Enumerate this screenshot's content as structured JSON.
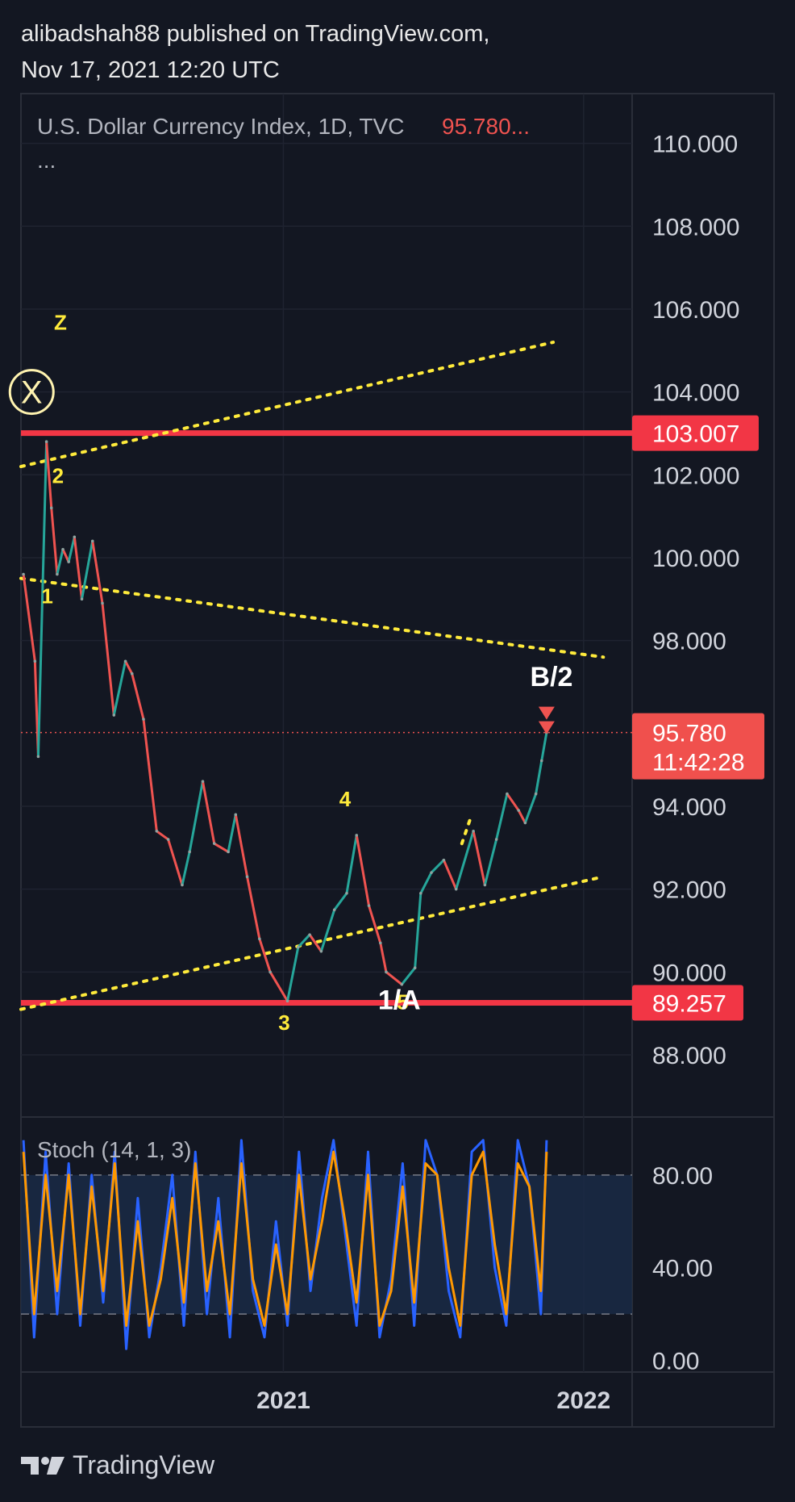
{
  "header": {
    "line1": "alibadshah88 published on TradingView.com,",
    "line2": "Nov 17, 2021 12:20 UTC"
  },
  "footer": {
    "brand": "TradingView"
  },
  "chart_data": [
    {
      "type": "line",
      "title": "U.S. Dollar Currency Index, 1D, TVC",
      "price_label": "95.780...",
      "legend_more": "...",
      "yticks": [
        "110.000",
        "108.000",
        "106.000",
        "104.000",
        "102.000",
        "100.000",
        "98.000",
        "94.000",
        "92.000",
        "90.000",
        "88.000"
      ],
      "ytick_values": [
        110,
        108,
        106,
        104,
        102,
        100,
        98,
        94,
        92,
        90,
        88
      ],
      "ylim": [
        86.5,
        111.2
      ],
      "xticks": [
        "2021",
        "2022"
      ],
      "xtick_values": [
        "2021-01-01",
        "2022-01-01"
      ],
      "x_range": [
        "2020-02-17",
        "2022-03-01"
      ],
      "grid": true,
      "colors": {
        "up": "#26a69a",
        "down": "#ef5350",
        "trendline": "#ffeb3b",
        "level": "#f23645",
        "label_text": "#ffffff"
      },
      "series": [
        {
          "x": [
            "2020-02-20",
            "2020-03-05",
            "2020-03-09",
            "2020-03-19",
            "2020-03-25",
            "2020-04-01",
            "2020-04-08",
            "2020-04-15",
            "2020-04-22",
            "2020-05-01",
            "2020-05-14",
            "2020-05-26",
            "2020-06-09",
            "2020-06-23",
            "2020-07-01",
            "2020-07-15",
            "2020-07-31",
            "2020-08-14",
            "2020-08-31",
            "2020-09-09",
            "2020-09-25",
            "2020-10-09",
            "2020-10-26",
            "2020-11-04",
            "2020-11-18",
            "2020-12-03",
            "2020-12-16",
            "2021-01-06",
            "2021-01-19",
            "2021-02-02",
            "2021-02-16",
            "2021-03-04",
            "2021-03-19",
            "2021-03-31",
            "2021-04-15",
            "2021-04-29",
            "2021-05-06",
            "2021-05-25",
            "2021-06-10",
            "2021-06-17",
            "2021-06-30",
            "2021-07-15",
            "2021-07-30",
            "2021-08-20",
            "2021-09-03",
            "2021-09-17",
            "2021-09-30",
            "2021-10-14",
            "2021-10-22",
            "2021-11-04",
            "2021-11-11",
            "2021-11-17"
          ],
          "y": [
            99.6,
            97.5,
            95.2,
            102.8,
            101.2,
            99.6,
            100.2,
            99.9,
            100.5,
            99.0,
            100.4,
            98.9,
            96.2,
            97.5,
            97.2,
            96.1,
            93.4,
            93.2,
            92.1,
            92.9,
            94.6,
            93.1,
            92.9,
            93.8,
            92.3,
            90.8,
            90.0,
            89.3,
            90.6,
            90.9,
            90.5,
            91.5,
            91.9,
            93.3,
            91.6,
            90.7,
            90.0,
            89.7,
            90.1,
            91.9,
            92.4,
            92.7,
            92.0,
            93.4,
            92.1,
            93.2,
            94.3,
            93.9,
            93.6,
            94.3,
            95.1,
            95.78
          ]
        }
      ],
      "levels": [
        {
          "value": 103.007,
          "label": "103.007"
        },
        {
          "value": 89.257,
          "label": "89.257"
        }
      ],
      "last_price": {
        "value": 95.78,
        "label": "95.780",
        "countdown": "11:42:28"
      },
      "trendlines": [
        {
          "from": [
            "2020-02-17",
            102.2
          ],
          "to": [
            "2021-11-25",
            105.2
          ]
        },
        {
          "from": [
            "2020-02-17",
            99.5
          ],
          "to": [
            "2022-01-25",
            97.6
          ]
        },
        {
          "from": [
            "2020-02-17",
            89.1
          ],
          "to": [
            "2022-01-25",
            92.3
          ]
        },
        {
          "from": [
            "2021-08-06",
            93.1
          ],
          "to": [
            "2021-08-18",
            93.8
          ]
        }
      ],
      "annotations": [
        {
          "text": "Z",
          "x": "2020-04-05",
          "y": 105.5,
          "color": "#ffeb3b"
        },
        {
          "text": "X",
          "x": "2020-03-01",
          "y": 104.0,
          "color": "#ffeb3b",
          "circled": true
        },
        {
          "text": "2",
          "x": "2020-04-02",
          "y": 101.8,
          "color": "#ffeb3b"
        },
        {
          "text": "1",
          "x": "2020-03-20",
          "y": 98.9,
          "color": "#ffeb3b"
        },
        {
          "text": "4",
          "x": "2021-03-17",
          "y": 94.0,
          "color": "#ffeb3b"
        },
        {
          "text": "3",
          "x": "2021-01-02",
          "y": 88.6,
          "color": "#ffeb3b"
        },
        {
          "text": "5",
          "x": "2021-05-26",
          "y": 89.1,
          "color": "#ffeb3b"
        },
        {
          "text": "1/A",
          "x": "2021-05-22",
          "y": 89.1,
          "color": "#ffffff"
        },
        {
          "text": "B/2",
          "x": "2021-11-23",
          "y": 96.9,
          "color": "#ffffff"
        }
      ]
    },
    {
      "type": "line",
      "title": "Stoch (14, 1, 3)",
      "yticks": [
        "80.00",
        "40.00",
        "0.00"
      ],
      "ytick_values": [
        80,
        40,
        0
      ],
      "ylim": [
        -5,
        105
      ],
      "bands": {
        "upper": 80,
        "lower": 20
      },
      "series": [
        {
          "color": "#2962ff",
          "x": [
            "2020-02-20",
            "2020-03-04",
            "2020-03-18",
            "2020-04-01",
            "2020-04-15",
            "2020-04-29",
            "2020-05-13",
            "2020-05-27",
            "2020-06-10",
            "2020-06-24",
            "2020-07-08",
            "2020-07-22",
            "2020-08-05",
            "2020-08-19",
            "2020-09-02",
            "2020-09-16",
            "2020-09-30",
            "2020-10-14",
            "2020-10-28",
            "2020-11-11",
            "2020-11-25",
            "2020-12-09",
            "2020-12-23",
            "2021-01-06",
            "2021-01-20",
            "2021-02-03",
            "2021-02-17",
            "2021-03-03",
            "2021-03-17",
            "2021-03-31",
            "2021-04-14",
            "2021-04-28",
            "2021-05-12",
            "2021-05-26",
            "2021-06-09",
            "2021-06-23",
            "2021-07-07",
            "2021-07-21",
            "2021-08-04",
            "2021-08-18",
            "2021-09-01",
            "2021-09-15",
            "2021-09-29",
            "2021-10-13",
            "2021-10-27",
            "2021-11-10",
            "2021-11-17"
          ],
          "y": [
            95,
            10,
            90,
            20,
            85,
            15,
            80,
            25,
            90,
            5,
            70,
            10,
            40,
            80,
            15,
            90,
            20,
            70,
            10,
            95,
            30,
            10,
            60,
            15,
            90,
            30,
            70,
            95,
            55,
            15,
            90,
            10,
            35,
            85,
            15,
            95,
            80,
            30,
            10,
            90,
            95,
            40,
            15,
            95,
            75,
            20,
            95
          ]
        },
        {
          "color": "#ff9800",
          "x": [
            "2020-02-20",
            "2020-03-04",
            "2020-03-18",
            "2020-04-01",
            "2020-04-15",
            "2020-04-29",
            "2020-05-13",
            "2020-05-27",
            "2020-06-10",
            "2020-06-24",
            "2020-07-08",
            "2020-07-22",
            "2020-08-05",
            "2020-08-19",
            "2020-09-02",
            "2020-09-16",
            "2020-09-30",
            "2020-10-14",
            "2020-10-28",
            "2020-11-11",
            "2020-11-25",
            "2020-12-09",
            "2020-12-23",
            "2021-01-06",
            "2021-01-20",
            "2021-02-03",
            "2021-02-17",
            "2021-03-03",
            "2021-03-17",
            "2021-03-31",
            "2021-04-14",
            "2021-04-28",
            "2021-05-12",
            "2021-05-26",
            "2021-06-09",
            "2021-06-23",
            "2021-07-07",
            "2021-07-21",
            "2021-08-04",
            "2021-08-18",
            "2021-09-01",
            "2021-09-15",
            "2021-09-29",
            "2021-10-13",
            "2021-10-27",
            "2021-11-10",
            "2021-11-17"
          ],
          "y": [
            90,
            20,
            80,
            30,
            80,
            20,
            75,
            30,
            85,
            15,
            60,
            15,
            35,
            70,
            25,
            85,
            30,
            60,
            20,
            85,
            35,
            15,
            50,
            20,
            80,
            35,
            60,
            90,
            60,
            25,
            80,
            15,
            30,
            75,
            25,
            85,
            80,
            40,
            15,
            80,
            90,
            50,
            20,
            85,
            75,
            30,
            90
          ]
        }
      ]
    }
  ]
}
